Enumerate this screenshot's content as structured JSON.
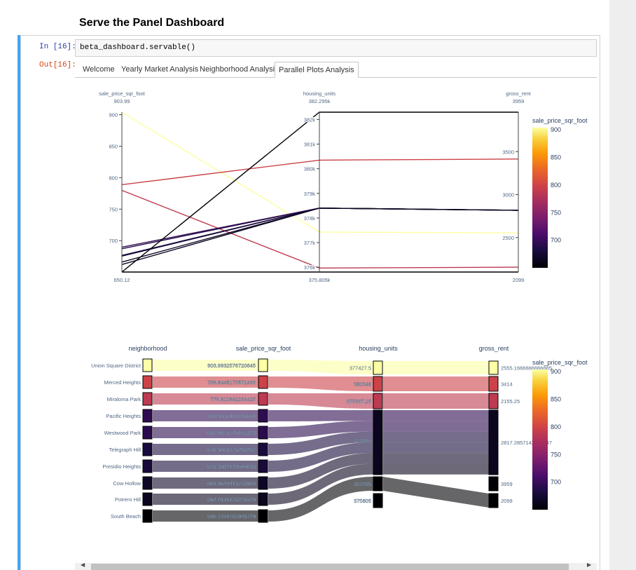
{
  "notebook": {
    "title": "Serve the Panel Dashboard",
    "in_prompt": "In [16]:",
    "out_prompt": "Out[16]:",
    "code": "beta_dashboard.servable()"
  },
  "tabs": [
    {
      "label": "Welcome",
      "active": false
    },
    {
      "label": "Yearly Market Analysis",
      "active": false
    },
    {
      "label": "Neighborhood Analysis",
      "active": false
    },
    {
      "label": "Parallel Plots Analysis",
      "active": true
    }
  ],
  "colors": {
    "accent_bar": "#42a5f5",
    "colorscale": [
      "#000004",
      "#1b0c41",
      "#4a0c6b",
      "#781c6d",
      "#a52c60",
      "#cf4446",
      "#ed6925",
      "#fb9b06",
      "#f7d13d",
      "#fcffa4"
    ]
  },
  "chart_data": [
    {
      "type": "parallel_coordinates",
      "dimensions": [
        {
          "name": "sale_price_sqr_foot",
          "max_label": "903.99",
          "min_label": "650.12",
          "range": [
            650.12,
            903.99
          ],
          "ticks": [
            "900",
            "850",
            "800",
            "750",
            "700"
          ]
        },
        {
          "name": "housing_units",
          "max_label": "382.295k",
          "min_label": "375.805k",
          "range": [
            375805,
            382295
          ],
          "ticks": [
            "382k",
            "381k",
            "380k",
            "379k",
            "378k",
            "377k",
            "376k"
          ]
        },
        {
          "name": "gross_rent",
          "max_label": "3959",
          "min_label": "2099",
          "range": [
            2099,
            3959
          ],
          "ticks": [
            "3500",
            "3000",
            "2500"
          ]
        }
      ],
      "rows": [
        [
          903.99,
          377427.5,
          2555.17
        ],
        [
          788.84,
          380348,
          3414
        ],
        [
          779.81,
          375967.25,
          2155.25
        ],
        [
          689.56,
          378401,
          2817.29
        ],
        [
          687.09,
          378401,
          2817.29
        ],
        [
          676.51,
          378401,
          2817.29
        ],
        [
          675.35,
          378401,
          2817.29
        ],
        [
          665.96,
          378401,
          2817.29
        ],
        [
          662.01,
          378401,
          2817.29
        ],
        [
          650.12,
          382295,
          3959
        ],
        [
          650.12,
          375805,
          2099
        ]
      ],
      "colorbar": {
        "title": "sale_price_sqr_foot",
        "ticks": [
          "900",
          "850",
          "800",
          "750",
          "700"
        ],
        "range": [
          650.12,
          903.99
        ]
      }
    },
    {
      "type": "parallel_categories",
      "dimensions": [
        {
          "name": "neighborhood",
          "categories": [
            "Union Square District",
            "Merced Heights",
            "Miraloma Park",
            "Pacific Heights",
            "Westwood Park",
            "Telegraph Hill",
            "Presidio Heights",
            "Cow Hollow",
            "Potrero Hill",
            "South Beach"
          ]
        },
        {
          "name": "sale_price_sqr_foot",
          "categories": [
            "903.9932576720645",
            "788.8448175872469",
            "779.810842264425",
            "689.5558168113664",
            "687.0875745178323",
            "676.5065775293257",
            "675.3502120510033",
            "665.9640415783908",
            "662.0136128276529",
            "650.1244791945729"
          ]
        },
        {
          "name": "housing_units",
          "categories": [
            "377427.5",
            "380348",
            "375967.25",
            "378401",
            "382295",
            "375805"
          ]
        },
        {
          "name": "gross_rent",
          "categories": [
            "2555.1666666666665",
            "3414",
            "2155.25",
            "2817.2857142857147",
            "3959",
            "2099"
          ]
        }
      ],
      "colorbar": {
        "title": "sale_price_sqr_foot",
        "ticks": [
          "900",
          "850",
          "800",
          "750",
          "700"
        ],
        "range": [
          650.12,
          903.99
        ]
      }
    }
  ]
}
